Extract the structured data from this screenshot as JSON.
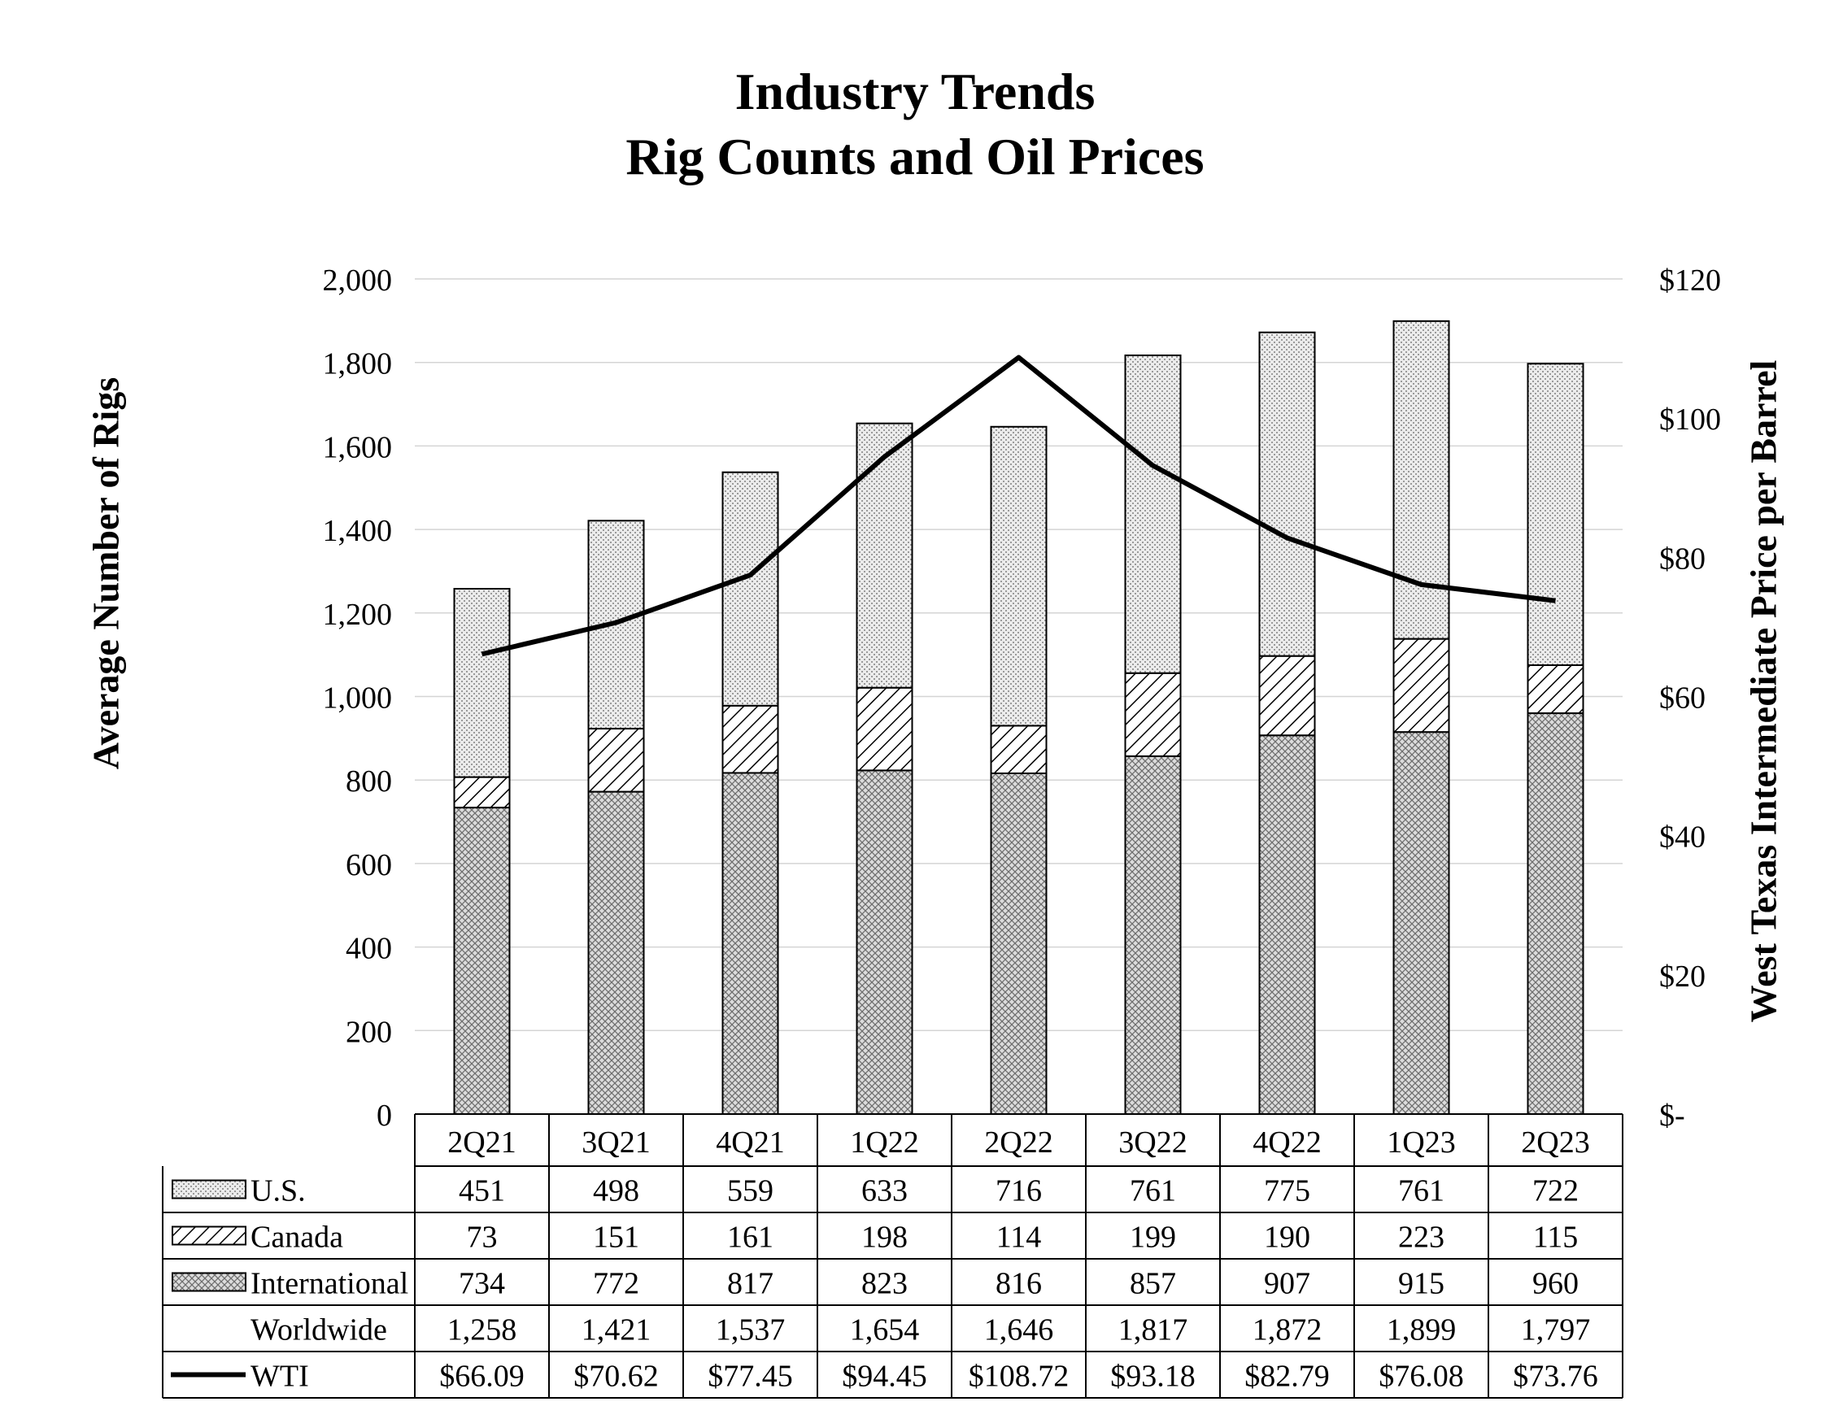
{
  "title_line1": "Industry Trends",
  "title_line2": "Rig Counts and Oil Prices",
  "chart_data": {
    "type": "bar",
    "stacked": true,
    "title": "Industry Trends Rig Counts and Oil Prices",
    "categories": [
      "2Q21",
      "3Q21",
      "4Q21",
      "1Q22",
      "2Q22",
      "3Q22",
      "4Q22",
      "1Q23",
      "2Q23"
    ],
    "series": [
      {
        "name": "U.S.",
        "kind": "bar",
        "axis": "left",
        "pattern": "dots",
        "values": [
          451,
          498,
          559,
          633,
          716,
          761,
          775,
          761,
          722
        ]
      },
      {
        "name": "Canada",
        "kind": "bar",
        "axis": "left",
        "pattern": "diagonal",
        "values": [
          73,
          151,
          161,
          198,
          114,
          199,
          190,
          223,
          115
        ]
      },
      {
        "name": "International",
        "kind": "bar",
        "axis": "left",
        "pattern": "crosshatch",
        "values": [
          734,
          772,
          817,
          823,
          816,
          857,
          907,
          915,
          960
        ]
      },
      {
        "name": "WTI",
        "kind": "line",
        "axis": "right",
        "values": [
          66.09,
          70.62,
          77.45,
          94.45,
          108.72,
          93.18,
          82.79,
          76.08,
          73.76
        ]
      }
    ],
    "stack_order_bottom_to_top": [
      "International",
      "Canada",
      "U.S."
    ],
    "totals": {
      "name": "Worldwide",
      "values": [
        1258,
        1421,
        1537,
        1654,
        1646,
        1817,
        1872,
        1899,
        1797
      ]
    },
    "table": {
      "rows": [
        {
          "label": "U.S.",
          "legend": "dots",
          "cells": [
            "451",
            "498",
            "559",
            "633",
            "716",
            "761",
            "775",
            "761",
            "722"
          ]
        },
        {
          "label": "Canada",
          "legend": "diagonal",
          "cells": [
            "73",
            "151",
            "161",
            "198",
            "114",
            "199",
            "190",
            "223",
            "115"
          ]
        },
        {
          "label": "International",
          "legend": "crosshatch",
          "cells": [
            "734",
            "772",
            "817",
            "823",
            "816",
            "857",
            "907",
            "915",
            "960"
          ]
        },
        {
          "label": "Worldwide",
          "legend": "none",
          "cells": [
            "1,258",
            "1,421",
            "1,537",
            "1,654",
            "1,646",
            "1,817",
            "1,872",
            "1,899",
            "1,797"
          ]
        },
        {
          "label": "WTI",
          "legend": "line",
          "cells": [
            "$66.09",
            "$70.62",
            "$77.45",
            "$94.45",
            "$108.72",
            "$93.18",
            "$82.79",
            "$76.08",
            "$73.76"
          ]
        }
      ]
    },
    "ylabel": "Average Number of Rigs",
    "ylim": [
      0,
      2000
    ],
    "yticks": [
      0,
      200,
      400,
      600,
      800,
      1000,
      1200,
      1400,
      1600,
      1800,
      2000
    ],
    "ytick_labels": [
      "0",
      "200",
      "400",
      "600",
      "800",
      "1,000",
      "1,200",
      "1,400",
      "1,600",
      "1,800",
      "2,000"
    ],
    "y2label": "West Texas Intermediate Price per Barrel",
    "y2lim": [
      0,
      120
    ],
    "y2ticks": [
      0,
      20,
      40,
      60,
      80,
      100,
      120
    ],
    "y2tick_labels": [
      "$-",
      "$20",
      "$40",
      "$60",
      "$80",
      "$100",
      "$120"
    ],
    "grid": true,
    "legend": "data-table"
  }
}
